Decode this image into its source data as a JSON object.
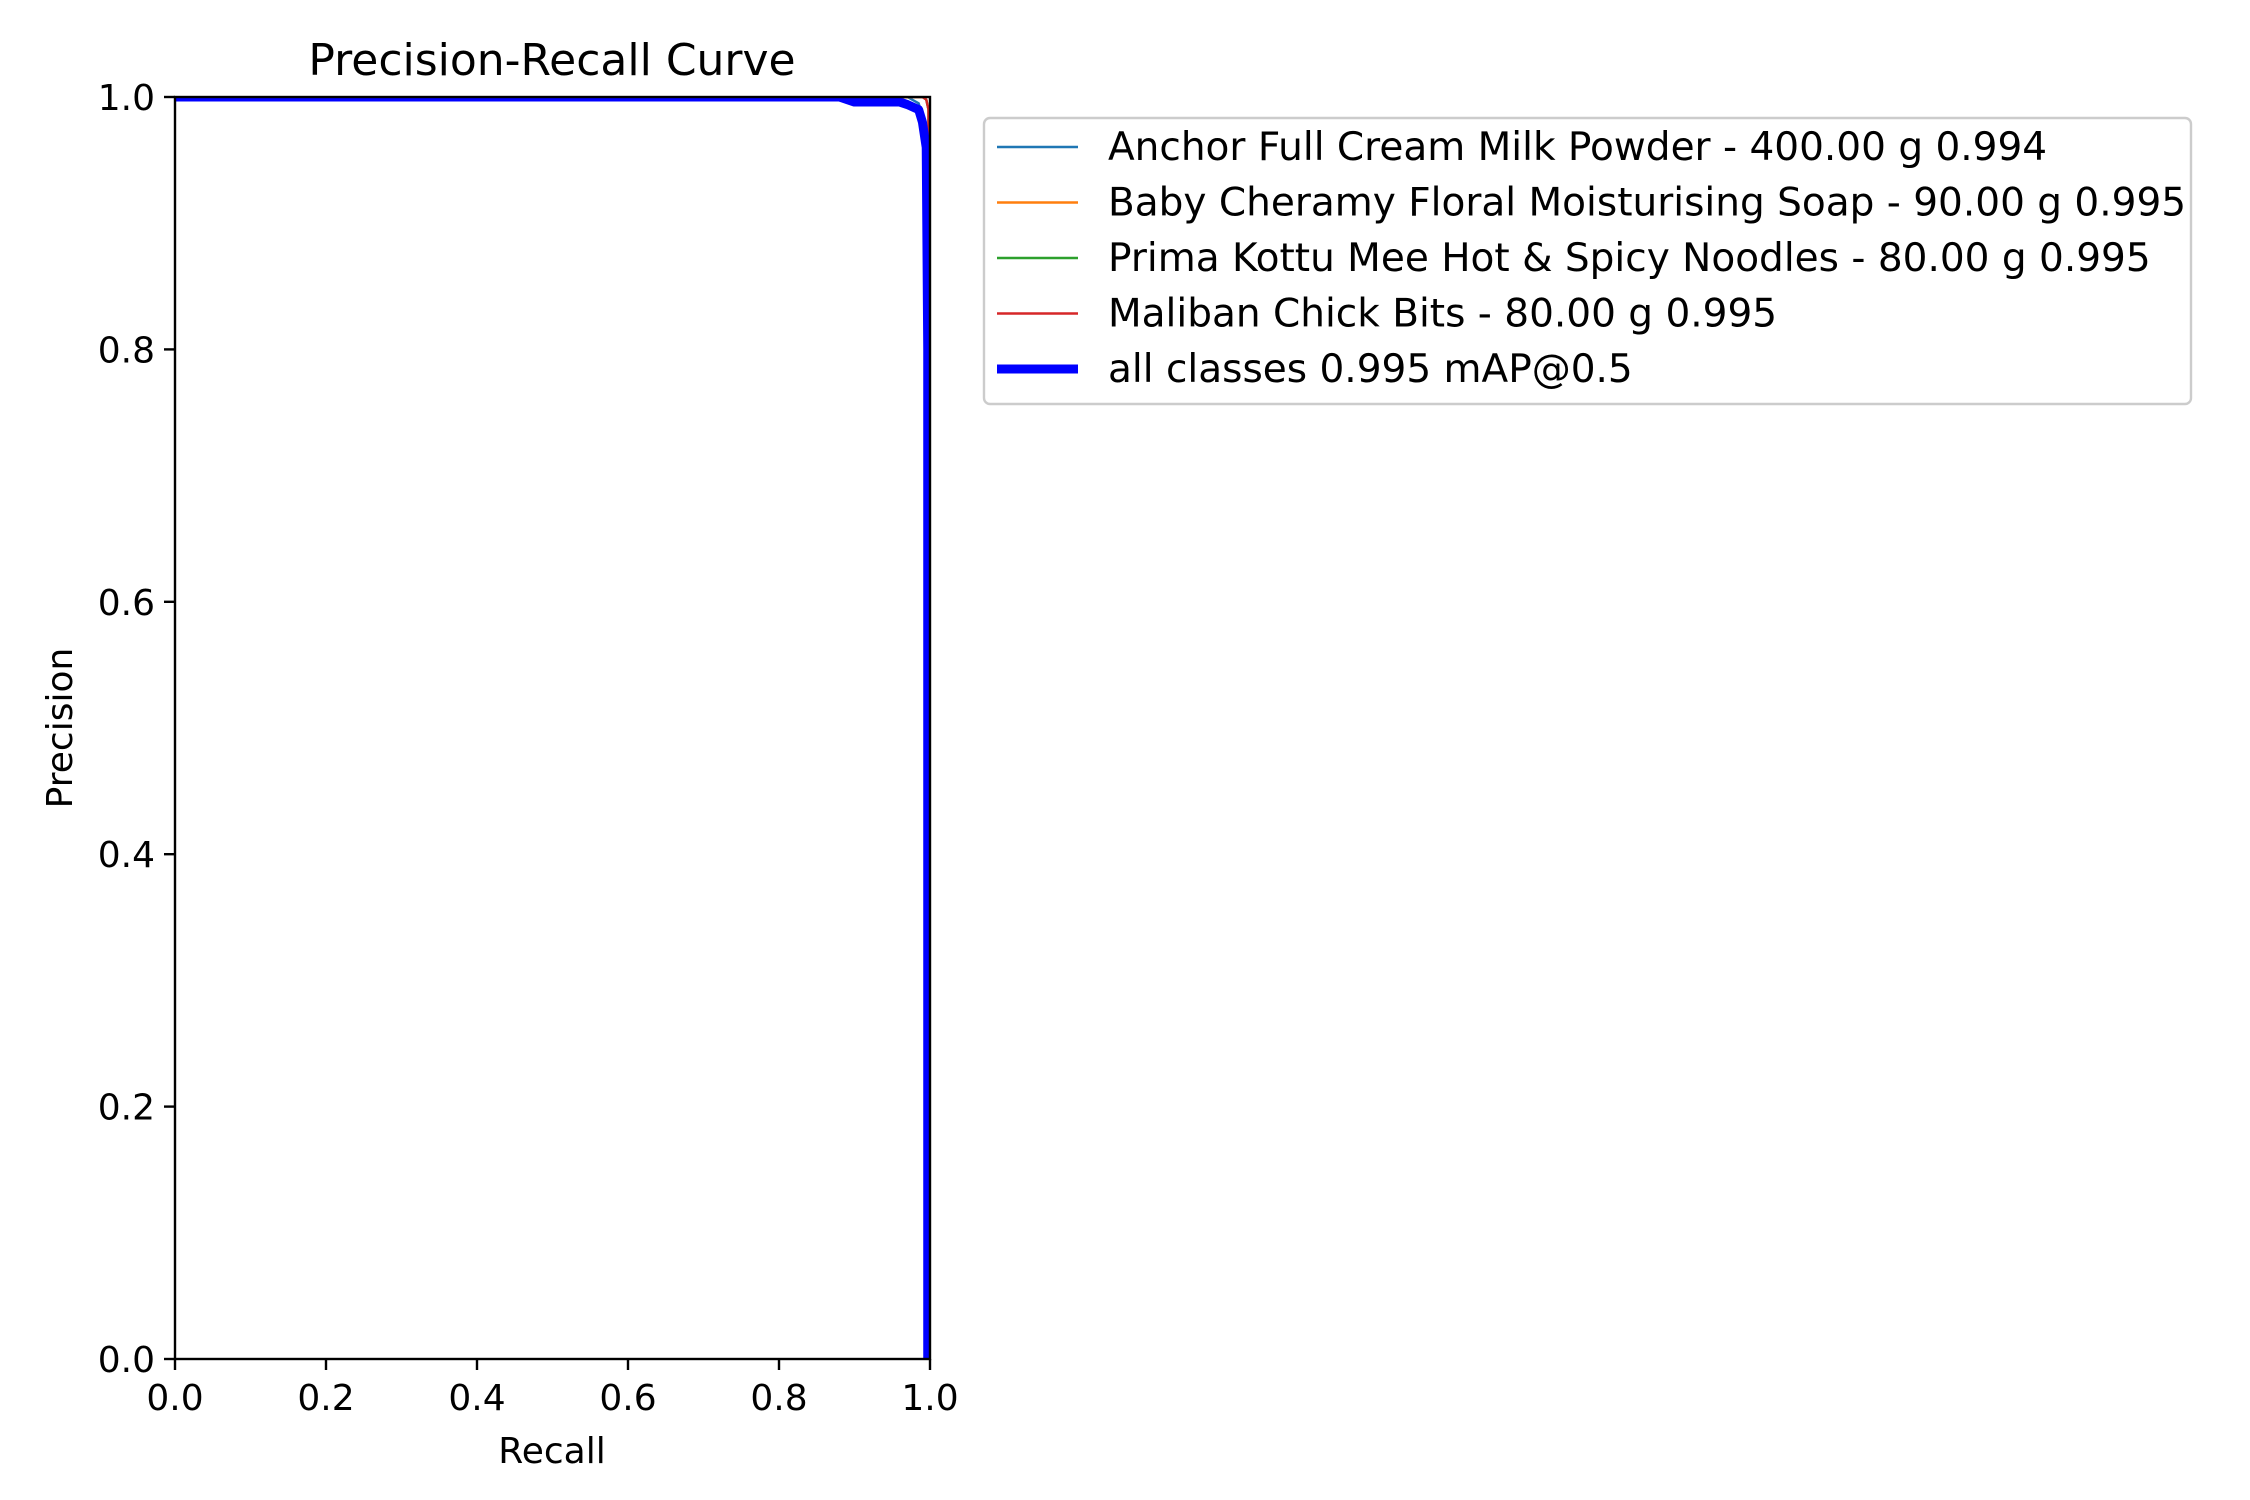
{
  "chart_data": {
    "type": "line",
    "title": "Precision-Recall Curve",
    "xlabel": "Recall",
    "ylabel": "Precision",
    "xlim": [
      0.0,
      1.0
    ],
    "ylim": [
      0.0,
      1.0
    ],
    "xticks": [
      "0.0",
      "0.2",
      "0.4",
      "0.6",
      "0.8",
      "1.0"
    ],
    "yticks": [
      "0.0",
      "0.2",
      "0.4",
      "0.6",
      "0.8",
      "1.0"
    ],
    "grid": false,
    "legend_position": "outside-top-right",
    "series": [
      {
        "name": "Anchor Full Cream Milk Powder - 400.00 g 0.994",
        "color": "#1f77b4",
        "x": [
          0.0,
          0.97,
          0.985,
          0.99,
          0.995,
          0.997,
          0.997,
          1.0
        ],
        "y": [
          1.0,
          1.0,
          0.995,
          0.985,
          0.97,
          0.9,
          0.0,
          0.0
        ]
      },
      {
        "name": "Baby Cheramy Floral Moisturising Soap - 90.00 g 0.995",
        "color": "#ff7f0e",
        "x": [
          0.0,
          0.99,
          0.995,
          0.998,
          0.998,
          1.0
        ],
        "y": [
          1.0,
          1.0,
          0.998,
          0.99,
          0.0,
          0.0
        ]
      },
      {
        "name": "Prima Kottu Mee Hot & Spicy Noodles - 80.00 g 0.995",
        "color": "#2ca02c",
        "x": [
          0.0,
          0.99,
          0.995,
          0.998,
          0.998,
          1.0
        ],
        "y": [
          1.0,
          1.0,
          0.998,
          0.99,
          0.0,
          0.0
        ]
      },
      {
        "name": "Maliban Chick Bits - 80.00 g 0.995",
        "color": "#d62728",
        "x": [
          0.0,
          0.99,
          0.995,
          0.998,
          0.998,
          1.0
        ],
        "y": [
          1.0,
          1.0,
          0.998,
          0.99,
          0.0,
          0.0
        ]
      },
      {
        "name": "all classes 0.995 mAP@0.5",
        "color": "#0000ff",
        "x": [
          0.0,
          0.88,
          0.9,
          0.96,
          0.97,
          0.985,
          0.99,
          0.995,
          0.997,
          0.997,
          1.0
        ],
        "y": [
          1.0,
          1.0,
          0.996,
          0.996,
          0.994,
          0.99,
          0.98,
          0.96,
          0.8,
          0.0,
          0.0
        ]
      }
    ]
  }
}
